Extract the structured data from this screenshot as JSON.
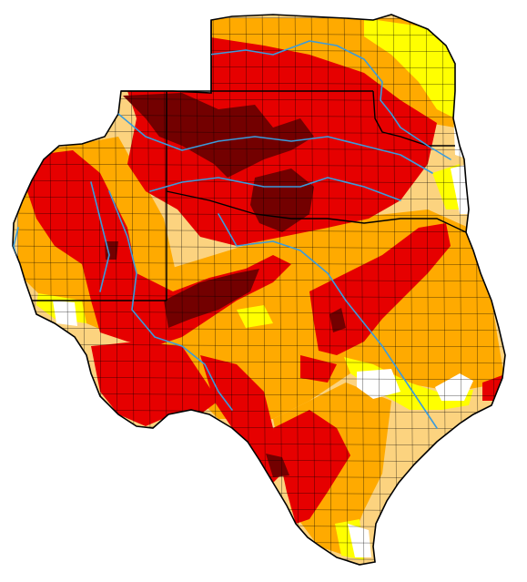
{
  "map": {
    "background": "#ffffff",
    "drought_palette": {
      "none": "#ffffff",
      "abnormally_dry": "#ffff00",
      "moderate": "#fcd37f",
      "severe": "#ffaa00",
      "extreme": "#e60000",
      "exceptional": "#730000"
    },
    "river_color": "#3a9bdc",
    "border_color": "#000000",
    "county_line_color": "#000000"
  }
}
